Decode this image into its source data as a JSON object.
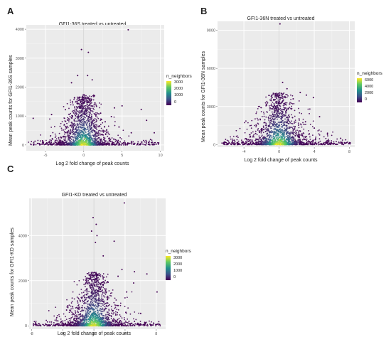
{
  "panels": [
    {
      "letter": "A",
      "title": "GFI1-36S treated vs untreated",
      "xlabel": "Log 2 fold change of peak counts",
      "ylabel": "Mean peak counts for GFI1-36S samples",
      "legend_title": "n_neighbors",
      "legend_ticks": [
        "3000",
        "2000",
        "1000",
        "0"
      ],
      "chart_data": {
        "type": "scatter",
        "title": "GFI1-36S treated vs untreated",
        "xlabel": "Log 2 fold change of peak counts",
        "ylabel": "Mean peak counts for GFI1-36S samples",
        "xlim": [
          -7.5,
          10.5
        ],
        "ylim": [
          -200,
          4150
        ],
        "xticks": [
          -5,
          0,
          5,
          10
        ],
        "yticks": [
          0,
          1000,
          2000,
          3000,
          4000
        ],
        "color_scale": "viridis",
        "legend_max": 3500,
        "outliers": [
          [
            5.8,
            3980
          ],
          [
            -0.3,
            3300
          ],
          [
            0.6,
            3200
          ],
          [
            0.5,
            2400
          ],
          [
            1.1,
            2250
          ],
          [
            -0.8,
            2400
          ],
          [
            -1.6,
            2150
          ],
          [
            1.4,
            1700
          ],
          [
            5.0,
            1350
          ],
          [
            -4.2,
            1050
          ],
          [
            -6.6,
            920
          ],
          [
            7.5,
            1230
          ],
          [
            4.0,
            1280
          ],
          [
            2.2,
            1100
          ],
          [
            -2.4,
            1220
          ],
          [
            8.2,
            850
          ],
          [
            9.2,
            420
          ],
          [
            6.2,
            420
          ],
          [
            2.8,
            800
          ],
          [
            3.6,
            980
          ],
          [
            4.6,
            620
          ]
        ]
      }
    },
    {
      "letter": "B",
      "title": "GFI1-36N treated vs untreated",
      "xlabel": "Log 2 fold change of peak counts",
      "ylabel": "Mean peak counts for GFI1-36N samples",
      "legend_title": "n_neighbors",
      "legend_ticks": [
        "6000",
        "4000",
        "2000",
        "0"
      ],
      "chart_data": {
        "type": "scatter",
        "title": "GFI1-36N treated vs untreated",
        "xlabel": "Log 2 fold change of peak counts",
        "ylabel": "Mean peak counts for GFI1-36N samples",
        "xlim": [
          -7,
          8.6
        ],
        "ylim": [
          -200,
          9700
        ],
        "xticks": [
          -4,
          0,
          4,
          8
        ],
        "yticks": [
          0,
          3000,
          6000,
          9000
        ],
        "color_scale": "viridis",
        "legend_max": 7000,
        "outliers": [
          [
            0.1,
            9500
          ],
          [
            0.4,
            4900
          ],
          [
            0.9,
            4400
          ],
          [
            2.4,
            4100
          ],
          [
            3.1,
            3900
          ],
          [
            1.6,
            3600
          ],
          [
            -0.8,
            3700
          ],
          [
            3.9,
            3700
          ],
          [
            1.2,
            3200
          ],
          [
            4.6,
            2200
          ],
          [
            3.0,
            1800
          ],
          [
            5.5,
            900
          ],
          [
            -2.0,
            1200
          ],
          [
            -3.3,
            600
          ],
          [
            7.0,
            500
          ],
          [
            4.0,
            1300
          ]
        ]
      }
    },
    {
      "letter": "C",
      "title": "GFI1-KD treated vs untreated",
      "xlabel": "Log 2 fold change of peak counts",
      "ylabel": "Mean peak counts for GFI1-KD samples",
      "legend_title": "n_neighbors",
      "legend_ticks": [
        "3000",
        "2000",
        "1000",
        "0"
      ],
      "chart_data": {
        "type": "scatter",
        "title": "GFI1-KD treated vs untreated",
        "xlabel": "Log 2 fold change of peak counts",
        "ylabel": "Mean peak counts for GFI1-KD samples",
        "xlim": [
          -8.3,
          9.2
        ],
        "ylim": [
          -150,
          5650
        ],
        "xticks": [
          -8,
          -4,
          0,
          4,
          8
        ],
        "yticks": [
          0,
          2000,
          4000
        ],
        "color_scale": "viridis",
        "legend_max": 3500,
        "outliers": [
          [
            3.9,
            5450
          ],
          [
            -0.1,
            4800
          ],
          [
            0.3,
            4500
          ],
          [
            -0.3,
            4200
          ],
          [
            0.4,
            4000
          ],
          [
            0.2,
            3700
          ],
          [
            1.2,
            3100
          ],
          [
            2.6,
            3750
          ],
          [
            3.6,
            2500
          ],
          [
            3.1,
            2200
          ],
          [
            5.2,
            2400
          ],
          [
            6.8,
            2300
          ],
          [
            5.1,
            1900
          ],
          [
            8.1,
            1500
          ],
          [
            4.2,
            1500
          ],
          [
            3.1,
            900
          ],
          [
            4.1,
            600
          ],
          [
            6.0,
            550
          ],
          [
            -2.1,
            1100
          ],
          [
            -3.5,
            700
          ],
          [
            1.6,
            1500
          ]
        ]
      }
    }
  ]
}
